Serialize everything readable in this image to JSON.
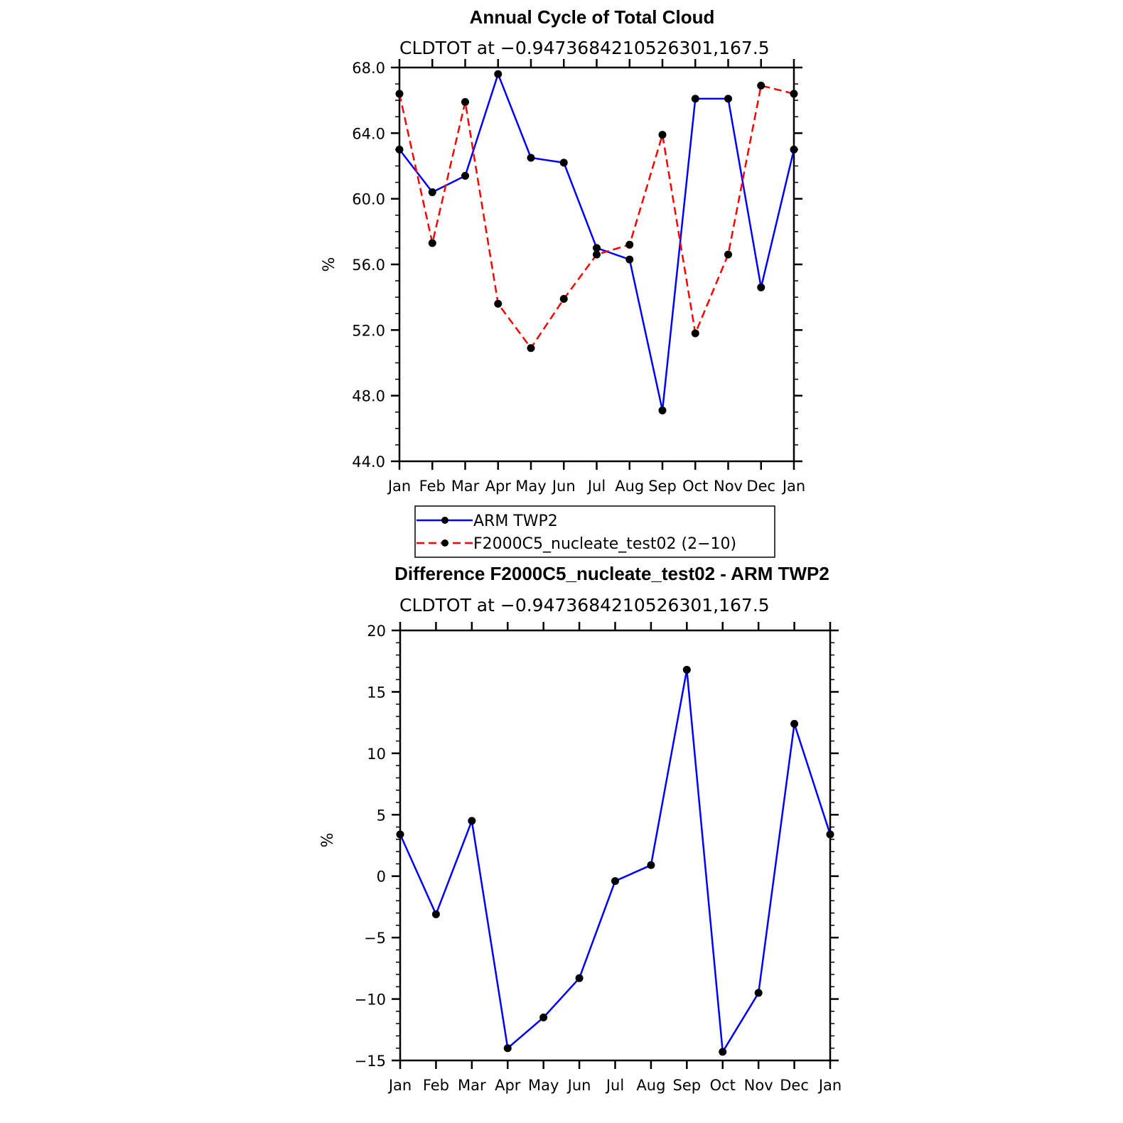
{
  "chart_data": [
    {
      "type": "line",
      "title": "Annual Cycle of Total Cloud",
      "subtitle": "CLDTOT at −0.9473684210526301,167.5",
      "ylabel": "%",
      "xlabel": "",
      "categories": [
        "Jan",
        "Feb",
        "Mar",
        "Apr",
        "May",
        "Jun",
        "Jul",
        "Aug",
        "Sep",
        "Oct",
        "Nov",
        "Dec",
        "Jan"
      ],
      "ylim": [
        44,
        68
      ],
      "yticks": [
        "44.0",
        "48.0",
        "52.0",
        "56.0",
        "60.0",
        "64.0",
        "68.0"
      ],
      "legend": "bottom",
      "series": [
        {
          "name": "ARM TWP2",
          "color": "#0000ff",
          "dash": "solid",
          "values": [
            63.0,
            60.4,
            61.4,
            67.6,
            62.5,
            62.2,
            57.0,
            56.3,
            47.1,
            66.1,
            66.1,
            54.6,
            63.0
          ]
        },
        {
          "name": "F2000C5_nucleate_test02 (2−10)",
          "color": "#ff0000",
          "dash": "dashed",
          "values": [
            66.4,
            57.3,
            65.9,
            53.6,
            50.9,
            53.9,
            56.6,
            57.2,
            63.9,
            51.8,
            56.6,
            66.9,
            66.4
          ]
        }
      ]
    },
    {
      "type": "line",
      "title": "Difference F2000C5_nucleate_test02 - ARM TWP2",
      "subtitle": "CLDTOT at −0.9473684210526301,167.5",
      "ylabel": "%",
      "xlabel": "",
      "categories": [
        "Jan",
        "Feb",
        "Mar",
        "Apr",
        "May",
        "Jun",
        "Jul",
        "Aug",
        "Sep",
        "Oct",
        "Nov",
        "Dec",
        "Jan"
      ],
      "ylim": [
        -15,
        20
      ],
      "yticks": [
        "−15",
        "−10",
        "−5",
        "0",
        "5",
        "10",
        "15",
        "20"
      ],
      "series": [
        {
          "color": "#0000ff",
          "dash": "solid",
          "values": [
            3.4,
            -3.1,
            4.5,
            -14.0,
            -11.5,
            -8.3,
            -0.4,
            0.9,
            16.8,
            -14.3,
            -9.5,
            12.4,
            3.4
          ]
        }
      ]
    }
  ]
}
